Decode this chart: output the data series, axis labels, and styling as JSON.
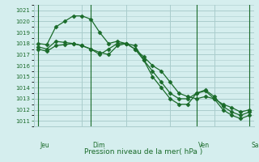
{
  "bg_color": "#d5eeee",
  "grid_color": "#aacccc",
  "line_color": "#1a6b2a",
  "marker_color": "#1a6b2a",
  "ylabel_ticks": [
    1011,
    1012,
    1013,
    1014,
    1015,
    1016,
    1017,
    1018,
    1019,
    1020,
    1021
  ],
  "ymin": 1010.5,
  "ymax": 1021.5,
  "xlabel": "Pression niveau de la mer( hPa )",
  "day_labels": [
    "Jeu",
    "Dim",
    "Ven",
    "Sam"
  ],
  "day_positions": [
    0,
    6,
    18,
    24
  ],
  "series": [
    [
      1018.0,
      1017.9,
      1019.5,
      1020.0,
      1020.5,
      1020.5,
      1020.2,
      1019.0,
      1018.0,
      1018.2,
      1018.0,
      1017.8,
      1016.5,
      1015.0,
      1014.0,
      1013.0,
      1012.5,
      1012.5,
      1013.5,
      1013.7,
      1013.0,
      1012.0,
      1011.5,
      1011.2,
      1011.5
    ],
    [
      1017.7,
      1017.5,
      1018.2,
      1018.1,
      1018.0,
      1017.8,
      1017.5,
      1017.0,
      1017.5,
      1018.0,
      1018.0,
      1017.5,
      1016.5,
      1015.5,
      1014.5,
      1013.5,
      1013.0,
      1013.0,
      1013.5,
      1013.8,
      1013.2,
      1012.3,
      1011.8,
      1011.5,
      1011.8
    ],
    [
      1017.5,
      1017.3,
      1017.8,
      1017.9,
      1018.0,
      1017.8,
      1017.5,
      1017.2,
      1017.0,
      1017.8,
      1018.0,
      1017.5,
      1016.8,
      1016.0,
      1015.5,
      1014.5,
      1013.5,
      1013.2,
      1013.0,
      1013.2,
      1013.0,
      1012.5,
      1012.2,
      1011.8,
      1012.0
    ]
  ],
  "xcount": 25
}
